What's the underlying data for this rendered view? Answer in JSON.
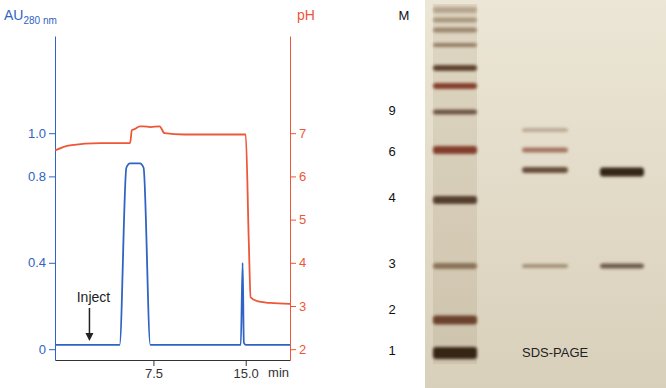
{
  "chart_data": {
    "type": "line",
    "x_label": "min",
    "y_label": "AU280 nm",
    "y2_label": "pH",
    "x": [
      -0.5,
      0.7,
      3.2,
      4.75,
      5.3,
      5.6,
      5.75,
      6.0,
      6.4,
      6.7,
      7.25,
      8.0,
      8.4,
      10,
      14.6,
      14.75,
      14.85,
      15.0,
      15.25,
      15.4,
      16.1,
      17,
      18.6
    ],
    "series": [
      {
        "color": "#2f63c4",
        "values": [
          0.02,
          0.02,
          0.02,
          0.02,
          0.84,
          0.86,
          0.86,
          0.86,
          0.86,
          0.84,
          0.02,
          0.02,
          0.02,
          0.02,
          0.02,
          0.4,
          0.03,
          0.02,
          0.02,
          0.02,
          0.02,
          0.02,
          0.02
        ]
      },
      {
        "color": "#ee5638",
        "axis": "y2",
        "values": [
          6.6,
          6.72,
          6.77,
          6.77,
          6.77,
          6.77,
          7.07,
          7.1,
          7.16,
          7.16,
          7.14,
          7.16,
          7.0,
          6.97,
          6.97,
          6.97,
          6.97,
          6.97,
          4.5,
          3.2,
          3.1,
          3.07,
          3.05
        ]
      }
    ],
    "xlim": [
      -0.5,
      18.6
    ],
    "xticks": [
      7.5,
      {
        "value": 15,
        "label": "15.0"
      }
    ],
    "ylim": [
      -0.05,
      1.45
    ],
    "yticks": [
      0,
      0.4,
      0.8,
      {
        "value": 1,
        "label": "1.0"
      }
    ],
    "y2lim": [
      1.75,
      9.25
    ],
    "y2ticks": [
      2,
      3,
      4,
      5,
      6,
      7
    ],
    "grid": false,
    "annotations": [
      {
        "text": "Inject",
        "x": 2.3
      }
    ]
  },
  "gel": {
    "title": "SDS-PAGE",
    "marker_label": "M",
    "marker_labels": [
      "9",
      "6",
      "4",
      "3",
      "2",
      "1"
    ]
  }
}
